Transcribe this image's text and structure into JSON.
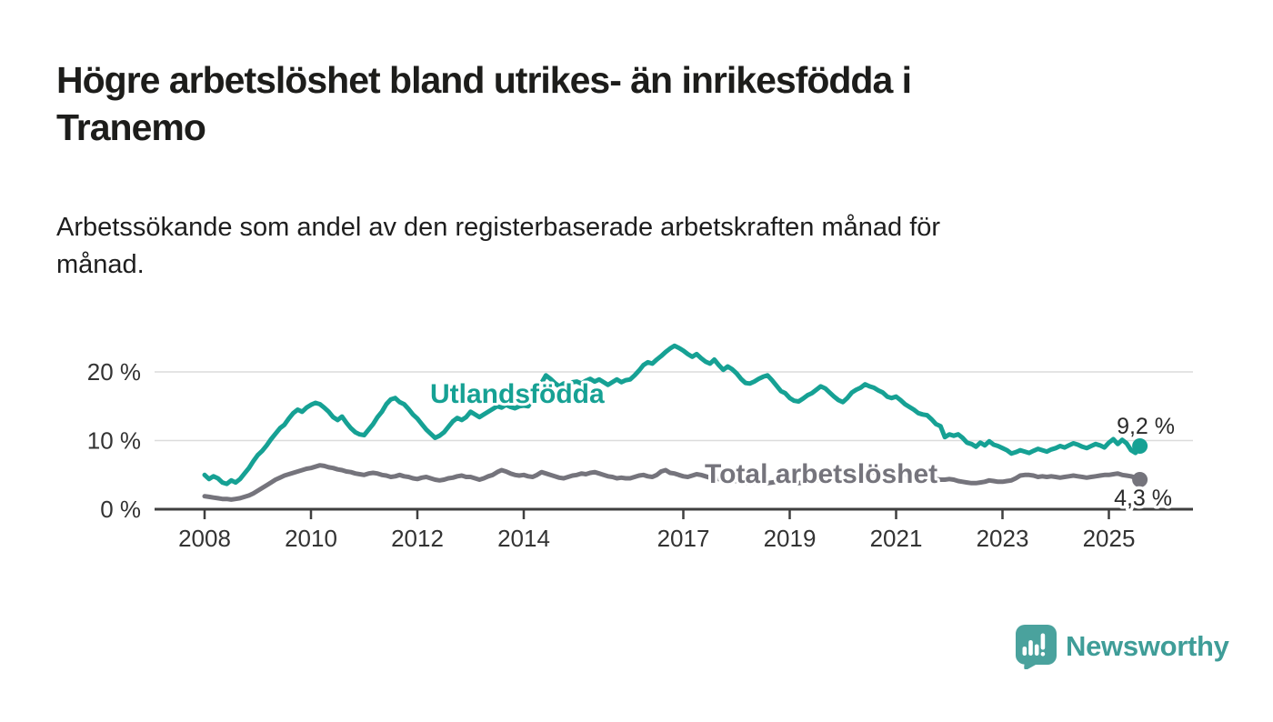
{
  "title": {
    "lines": [
      "Högre arbetslöshet bland utrikes- än inrikesfödda i",
      "Tranemo"
    ]
  },
  "subtitle": {
    "lines": [
      "Arbetssökande som andel av den registerbaserade arbetskraften månad för",
      "månad."
    ]
  },
  "colors": {
    "teal": "#16a194",
    "gray": "#75747c",
    "grid": "#dcdcdc",
    "axis": "#3f3f3f",
    "tick_text": "#333333",
    "end_label_text": "#2a2a2a",
    "logo": "#3f9d98"
  },
  "logo": {
    "text": "Newsworthy"
  },
  "chart_data": {
    "type": "line",
    "x_unit": "month",
    "x_start": "2008-01",
    "x_end": "2025-08",
    "ylim": [
      0,
      24
    ],
    "grid": true,
    "yticks": [
      {
        "v": 0,
        "label": "0 %"
      },
      {
        "v": 10,
        "label": "10 %"
      },
      {
        "v": 20,
        "label": "20 %"
      }
    ],
    "xticks": [
      {
        "year": 2008,
        "label": "2008"
      },
      {
        "year": 2010,
        "label": "2010"
      },
      {
        "year": 2012,
        "label": "2012"
      },
      {
        "year": 2014,
        "label": "2014"
      },
      {
        "year": 2017,
        "label": "2017"
      },
      {
        "year": 2019,
        "label": "2019"
      },
      {
        "year": 2021,
        "label": "2021"
      },
      {
        "year": 2023,
        "label": "2023"
      },
      {
        "year": 2025,
        "label": "2025"
      }
    ],
    "series": [
      {
        "name": "Utlandsfödda",
        "color": "#16a194",
        "end_label": "9,2 %",
        "end_value": 9.2,
        "values": [
          5.0,
          4.4,
          4.8,
          4.5,
          3.9,
          3.7,
          4.2,
          3.9,
          4.4,
          5.2,
          6.0,
          7.0,
          7.9,
          8.5,
          9.3,
          10.2,
          11.0,
          11.8,
          12.3,
          13.2,
          14.0,
          14.5,
          14.2,
          14.8,
          15.2,
          15.5,
          15.3,
          14.8,
          14.2,
          13.4,
          13.0,
          13.5,
          12.6,
          11.8,
          11.2,
          10.9,
          10.8,
          11.6,
          12.4,
          13.4,
          14.2,
          15.3,
          16.0,
          16.2,
          15.6,
          15.3,
          14.6,
          13.8,
          13.2,
          12.4,
          11.6,
          11.0,
          10.4,
          10.7,
          11.2,
          12.0,
          12.8,
          13.3,
          13.0,
          13.4,
          14.2,
          13.8,
          13.4,
          13.8,
          14.2,
          14.6,
          15.0,
          14.8,
          15.2,
          14.9,
          14.7,
          15.0,
          15.1,
          15.0,
          16.0,
          17.2,
          18.4,
          19.5,
          19.0,
          18.4,
          17.9,
          18.3,
          18.1,
          18.5,
          18.6,
          18.3,
          18.7,
          19.0,
          18.6,
          18.9,
          18.5,
          18.1,
          18.5,
          18.9,
          18.5,
          18.8,
          18.9,
          19.5,
          20.2,
          21.0,
          21.4,
          21.2,
          21.8,
          22.3,
          22.9,
          23.4,
          23.8,
          23.5,
          23.1,
          22.6,
          22.2,
          22.6,
          22.0,
          21.5,
          21.2,
          21.8,
          21.0,
          20.3,
          20.8,
          20.4,
          19.8,
          19.0,
          18.4,
          18.3,
          18.6,
          19.0,
          19.3,
          19.5,
          18.8,
          18.0,
          17.2,
          16.9,
          16.2,
          15.8,
          15.7,
          16.1,
          16.6,
          16.9,
          17.4,
          17.9,
          17.6,
          17.0,
          16.4,
          15.9,
          15.6,
          16.2,
          17.0,
          17.4,
          17.7,
          18.2,
          17.9,
          17.7,
          17.3,
          17.0,
          16.4,
          16.2,
          16.4,
          15.9,
          15.3,
          14.9,
          14.5,
          14.0,
          13.8,
          13.7,
          13.1,
          12.4,
          12.1,
          10.5,
          10.9,
          10.7,
          10.9,
          10.4,
          9.7,
          9.5,
          9.1,
          9.7,
          9.3,
          9.9,
          9.4,
          9.2,
          8.9,
          8.6,
          8.1,
          8.3,
          8.6,
          8.4,
          8.2,
          8.5,
          8.8,
          8.6,
          8.4,
          8.7,
          8.9,
          9.2,
          9.0,
          9.3,
          9.6,
          9.4,
          9.1,
          8.9,
          9.2,
          9.5,
          9.3,
          9.0,
          9.7,
          10.2,
          9.5,
          10.1,
          9.6,
          8.6,
          8.2,
          9.2
        ]
      },
      {
        "name": "Total arbetslöshet",
        "color": "#75747c",
        "end_label": "4,3 %",
        "end_value": 4.3,
        "values": [
          1.9,
          1.8,
          1.7,
          1.6,
          1.5,
          1.5,
          1.4,
          1.5,
          1.6,
          1.8,
          2.0,
          2.3,
          2.7,
          3.1,
          3.5,
          3.9,
          4.3,
          4.6,
          4.9,
          5.1,
          5.3,
          5.5,
          5.7,
          5.9,
          6.0,
          6.2,
          6.4,
          6.3,
          6.1,
          6.0,
          5.8,
          5.7,
          5.5,
          5.4,
          5.2,
          5.1,
          5.0,
          5.2,
          5.3,
          5.2,
          5.0,
          4.9,
          4.7,
          4.8,
          5.0,
          4.8,
          4.7,
          4.5,
          4.4,
          4.6,
          4.7,
          4.5,
          4.3,
          4.2,
          4.3,
          4.5,
          4.6,
          4.8,
          4.9,
          4.7,
          4.7,
          4.5,
          4.3,
          4.5,
          4.8,
          5.0,
          5.4,
          5.7,
          5.5,
          5.2,
          5.0,
          4.9,
          5.0,
          4.8,
          4.7,
          5.0,
          5.4,
          5.2,
          5.0,
          4.8,
          4.6,
          4.5,
          4.7,
          4.9,
          5.0,
          5.2,
          5.1,
          5.3,
          5.4,
          5.2,
          5.0,
          4.8,
          4.7,
          4.5,
          4.6,
          4.5,
          4.5,
          4.7,
          4.9,
          5.0,
          4.8,
          4.7,
          5.0,
          5.5,
          5.7,
          5.3,
          5.2,
          5.0,
          4.8,
          4.7,
          4.9,
          5.1,
          5.0,
          4.8,
          4.6,
          4.5,
          4.4,
          4.3,
          4.2,
          4.2,
          4.1,
          4.0,
          3.9,
          3.8,
          3.9,
          4.0,
          3.9,
          3.8,
          3.9,
          4.0,
          4.1,
          4.0,
          4.0,
          3.9,
          3.8,
          3.9,
          4.0,
          4.1,
          4.2,
          4.3,
          4.2,
          4.1,
          4.2,
          4.3,
          4.4,
          4.5,
          4.8,
          5.2,
          5.5,
          5.6,
          5.5,
          5.4,
          5.3,
          5.2,
          5.1,
          5.0,
          5.1,
          5.2,
          5.0,
          4.9,
          4.8,
          4.7,
          4.6,
          4.5,
          4.4,
          4.4,
          4.3,
          4.3,
          4.4,
          4.3,
          4.1,
          4.0,
          3.9,
          3.8,
          3.8,
          3.9,
          4.0,
          4.2,
          4.1,
          4.0,
          4.0,
          4.1,
          4.2,
          4.5,
          4.9,
          5.0,
          5.0,
          4.9,
          4.7,
          4.8,
          4.7,
          4.8,
          4.7,
          4.6,
          4.7,
          4.8,
          4.9,
          4.8,
          4.7,
          4.6,
          4.7,
          4.8,
          4.9,
          5.0,
          5.0,
          5.1,
          5.2,
          5.0,
          4.9,
          4.8,
          4.6,
          4.3
        ]
      }
    ]
  }
}
